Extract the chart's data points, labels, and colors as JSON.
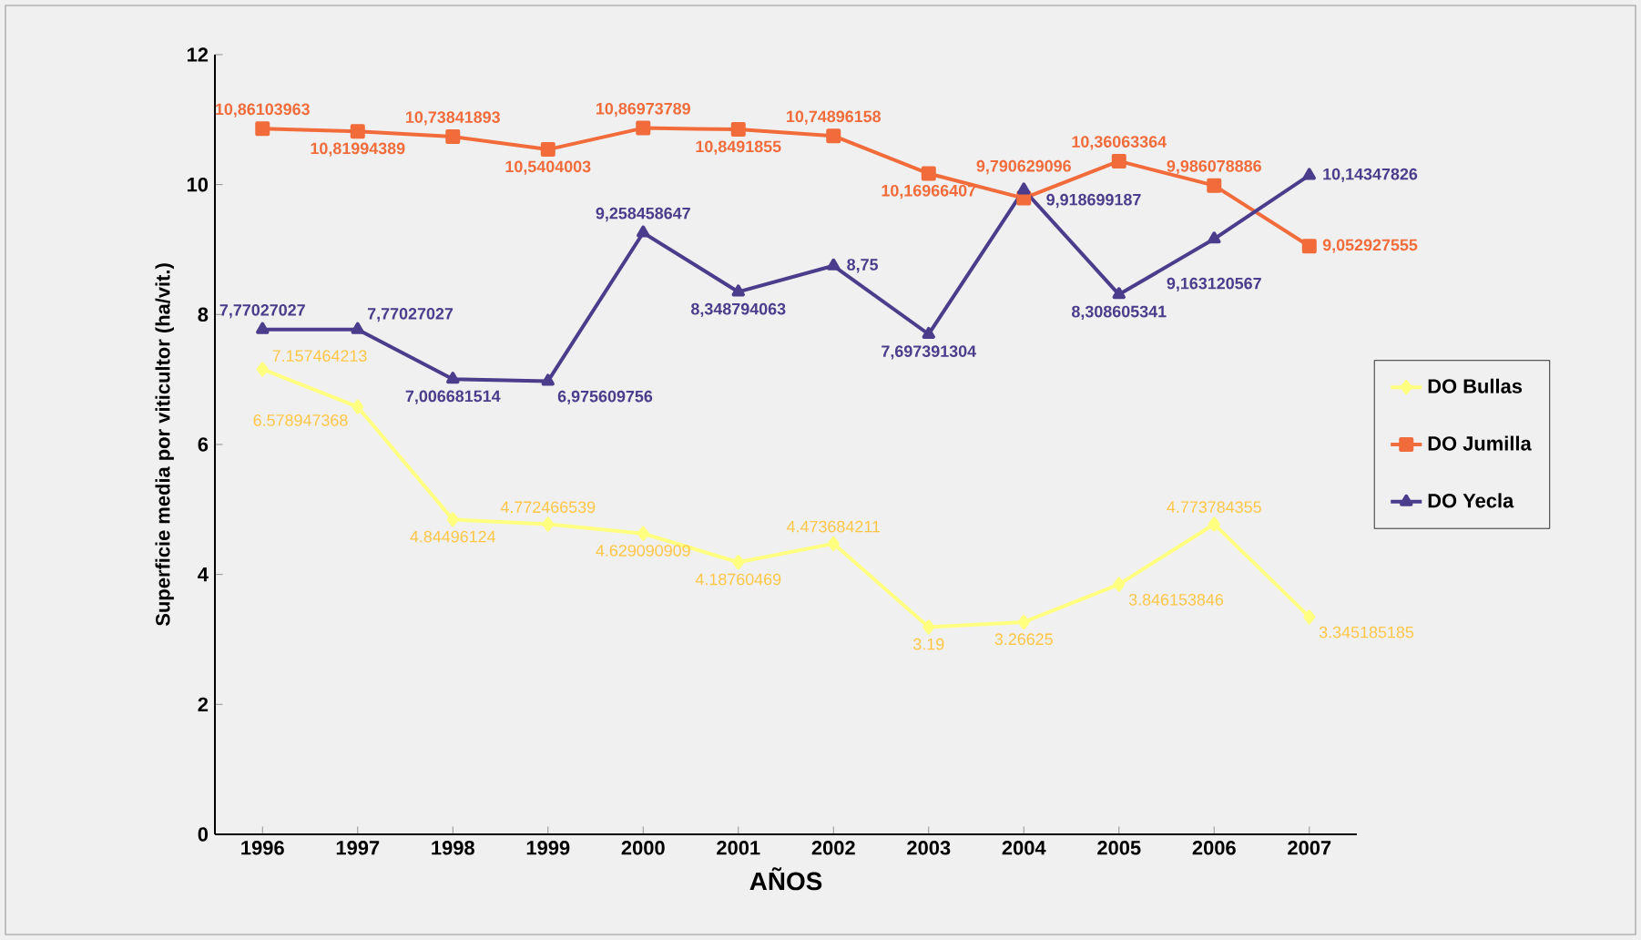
{
  "chart_data": {
    "type": "line",
    "xlabel": "AÑOS",
    "ylabel": "Superficie media por viticultor (ha/vit.)",
    "categories": [
      "1996",
      "1997",
      "1998",
      "1999",
      "2000",
      "2001",
      "2002",
      "2003",
      "2004",
      "2005",
      "2006",
      "2007"
    ],
    "ylim": [
      0,
      12
    ],
    "yticks": [
      0,
      2,
      4,
      6,
      8,
      10,
      12
    ],
    "grid": false,
    "legend": "right",
    "series": [
      {
        "name": "DO Bullas",
        "color": "#ffff80",
        "marker": "diamond",
        "values": [
          7.157464213,
          6.578947368,
          4.84496124,
          4.772466539,
          4.629090909,
          4.18760469,
          4.473684211,
          3.19,
          3.26625,
          3.846153846,
          4.773784355,
          3.345185185
        ],
        "value_labels": [
          "7.157464213",
          "6.578947368",
          "4.84496124",
          "4.772466539",
          "4.629090909",
          "4.18760469",
          "4.473684211",
          "3.19",
          "3.26625",
          "3.846153846",
          "4.773784355",
          "3.345185185"
        ]
      },
      {
        "name": "DO Jumilla",
        "color": "#f26b3a",
        "marker": "square",
        "values": [
          10.86103963,
          10.81994389,
          10.73841893,
          10.5404003,
          10.86973789,
          10.8491855,
          10.74896158,
          10.16966407,
          9.790629096,
          10.36063364,
          9.986078886,
          9.052927555
        ],
        "value_labels": [
          "10,86103963",
          "10,81994389",
          "10,73841893",
          "10,5404003",
          "10,86973789",
          "10,8491855",
          "10,74896158",
          "10,16966407",
          "9,790629096",
          "10,36063364",
          "9,986078886",
          "9,052927555"
        ]
      },
      {
        "name": "DO Yecla",
        "color": "#4b3c8c",
        "marker": "triangle",
        "values": [
          7.77027027,
          7.77027027,
          7.006681514,
          6.975609756,
          9.258458647,
          8.348794063,
          8.75,
          7.697391304,
          9.918699187,
          8.308605341,
          9.163120567,
          10.14347826
        ],
        "value_labels": [
          "7,77027027",
          "7,77027027",
          "7,006681514",
          "6,975609756",
          "9,258458647",
          "8,348794063",
          "8,75",
          "7,697391304",
          "9,918699187",
          "8,308605341",
          "9,163120567",
          "10,14347826"
        ]
      }
    ]
  }
}
